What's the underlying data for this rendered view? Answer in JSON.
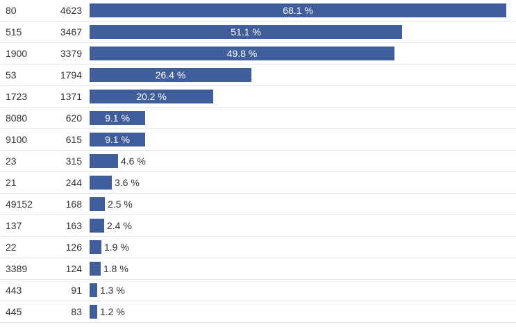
{
  "chart_data": {
    "type": "bar",
    "orientation": "horizontal",
    "categories": [
      "80",
      "515",
      "1900",
      "53",
      "1723",
      "8080",
      "9100",
      "23",
      "21",
      "49152",
      "137",
      "22",
      "3389",
      "443",
      "445"
    ],
    "values": [
      4623,
      3467,
      3379,
      1794,
      1371,
      620,
      615,
      315,
      244,
      168,
      163,
      126,
      124,
      91,
      83
    ],
    "percent_labels": [
      "68.1 %",
      "51.1 %",
      "49.8 %",
      "26.4 %",
      "20.2 %",
      "9.1 %",
      "9.1 %",
      "4.6 %",
      "3.6 %",
      "2.5 %",
      "2.4 %",
      "1.9 %",
      "1.8 %",
      "1.3 %",
      "1.2 %"
    ],
    "percent_values": [
      68.1,
      51.1,
      49.8,
      26.4,
      20.2,
      9.1,
      9.1,
      4.6,
      3.6,
      2.5,
      2.4,
      1.9,
      1.8,
      1.3,
      1.2
    ],
    "grid": false,
    "colors": {
      "bar": "#3f5e9b",
      "label_inside": "#ffffff",
      "label_outside": "#333333",
      "row_divider": "#e3e3e3"
    }
  }
}
